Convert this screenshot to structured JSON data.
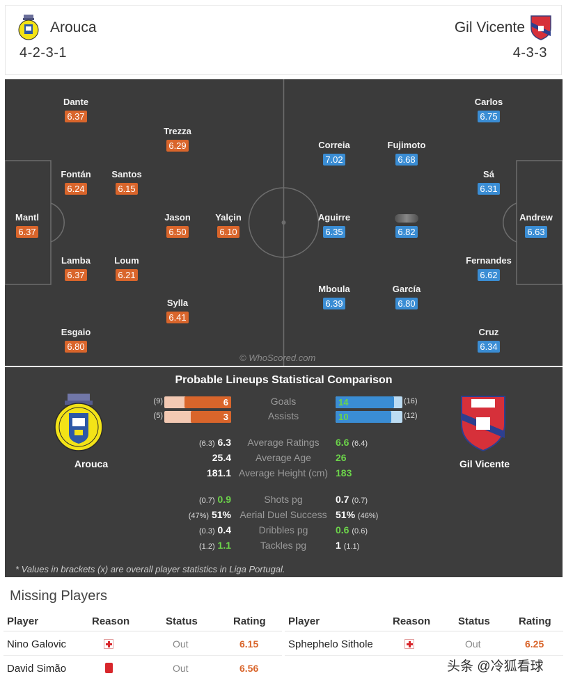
{
  "header": {
    "home_team": "Arouca",
    "home_formation": "4-2-3-1",
    "away_team": "Gil Vicente",
    "away_formation": "4-3-3"
  },
  "pitch": {
    "watermark": "© WhoScored.com",
    "home_players": [
      {
        "name": "Mantl",
        "rating": "6.37"
      },
      {
        "name": "Dante",
        "rating": "6.37"
      },
      {
        "name": "Fontán",
        "rating": "6.24"
      },
      {
        "name": "Lamba",
        "rating": "6.37"
      },
      {
        "name": "Esgaio",
        "rating": "6.80"
      },
      {
        "name": "Santos",
        "rating": "6.15"
      },
      {
        "name": "Loum",
        "rating": "6.21"
      },
      {
        "name": "Trezza",
        "rating": "6.29"
      },
      {
        "name": "Jason",
        "rating": "6.50"
      },
      {
        "name": "Sylla",
        "rating": "6.41"
      },
      {
        "name": "Yalçin",
        "rating": "6.10"
      }
    ],
    "away_players": [
      {
        "name": "Andrew",
        "rating": "6.63"
      },
      {
        "name": "Carlos",
        "rating": "6.75"
      },
      {
        "name": "Sá",
        "rating": "6.31"
      },
      {
        "name": "Fernandes",
        "rating": "6.62"
      },
      {
        "name": "Cruz",
        "rating": "6.34"
      },
      {
        "name": "Fujimoto",
        "rating": "6.68"
      },
      {
        "name": "",
        "rating": "6.82"
      },
      {
        "name": "García",
        "rating": "6.80"
      },
      {
        "name": "Correia",
        "rating": "7.02"
      },
      {
        "name": "Aguirre",
        "rating": "6.35"
      },
      {
        "name": "Mboula",
        "rating": "6.39"
      }
    ]
  },
  "comparison": {
    "title": "Probable Lineups Statistical Comparison",
    "home_name": "Arouca",
    "away_name": "Gil Vicente",
    "bars": [
      {
        "label": "Goals",
        "home": "6",
        "home_br": "(9)",
        "home_frac": 0.7,
        "away": "14",
        "away_br": "(16)",
        "away_frac": 0.88
      },
      {
        "label": "Assists",
        "home": "3",
        "home_br": "(5)",
        "home_frac": 0.6,
        "away": "10",
        "away_br": "(12)",
        "away_frac": 0.83
      }
    ],
    "stats_a": [
      {
        "label": "Average Ratings",
        "home_br": "(6.3)",
        "home": "6.3",
        "away": "6.6",
        "away_br": "(6.4)"
      },
      {
        "label": "Average Age",
        "home_br": "",
        "home": "25.4",
        "away": "26",
        "away_br": ""
      },
      {
        "label": "Average Height (cm)",
        "home_br": "",
        "home": "181.1",
        "away": "183",
        "away_br": ""
      }
    ],
    "stats_b": [
      {
        "label": "Shots pg",
        "home_br": "(0.7)",
        "home": "0.9",
        "away": "0.7",
        "away_br": "(0.7)"
      },
      {
        "label": "Aerial Duel Success",
        "home_br": "(47%)",
        "home": "51%",
        "away": "51%",
        "away_br": "(46%)"
      },
      {
        "label": "Dribbles pg",
        "home_br": "(0.3)",
        "home": "0.4",
        "away": "0.6",
        "away_br": "(0.6)"
      },
      {
        "label": "Tackles pg",
        "home_br": "(1.2)",
        "home": "1.1",
        "away": "1",
        "away_br": "(1.1)"
      }
    ],
    "footnote": "* Values in brackets (x) are overall player statistics in Liga Portugal."
  },
  "missing": {
    "title": "Missing Players",
    "columns": [
      "Player",
      "Reason",
      "Status",
      "Rating"
    ],
    "home_rows": [
      {
        "player": "Nino Galovic",
        "reason": "injury",
        "status": "Out",
        "rating": "6.15"
      },
      {
        "player": "David Simão",
        "reason": "red-card",
        "status": "Out",
        "rating": "6.56"
      }
    ],
    "away_rows": [
      {
        "player": "Sphephelo Sithole",
        "reason": "injury",
        "status": "Out",
        "rating": "6.25"
      }
    ]
  },
  "corner_watermark": "头条 @冷狐看球",
  "colors": {
    "home": "#d9652b",
    "away": "#3a8dd4",
    "pitch": "#3b3b3b",
    "highlight": "#6cd44a"
  }
}
